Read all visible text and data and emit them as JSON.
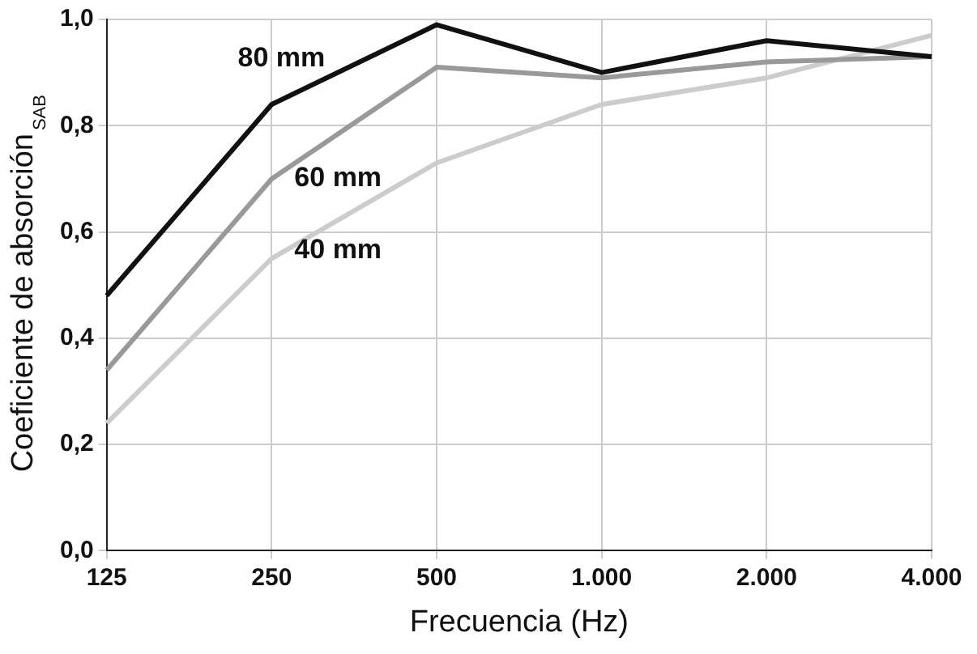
{
  "chart_data": {
    "type": "line",
    "xlabel": "Frecuencia (Hz)",
    "ylabel": "Coeficiente de absorción$_{SAB}$",
    "categories": [
      "125",
      "250",
      "500",
      "1.000",
      "2.000",
      "4.000"
    ],
    "ylim": [
      0,
      1
    ],
    "yticks": [
      {
        "value": 0,
        "label": "0,0"
      },
      {
        "value": 0.2,
        "label": "0,2"
      },
      {
        "value": 0.4,
        "label": "0,4"
      },
      {
        "value": 0.6,
        "label": "0,6"
      },
      {
        "value": 0.8,
        "label": "0,8"
      },
      {
        "value": 1,
        "label": "1,0"
      }
    ],
    "grid": true,
    "legend": false,
    "marker": "none",
    "line_style": "solid",
    "series": [
      {
        "name": "80 mm",
        "color": "#111111",
        "values": [
          0.48,
          0.84,
          0.99,
          0.9,
          0.96,
          0.93
        ]
      },
      {
        "name": "60 mm",
        "color": "#999999",
        "values": [
          0.34,
          0.7,
          0.91,
          0.89,
          0.92,
          0.93
        ]
      },
      {
        "name": "40 mm",
        "color": "#cccccc",
        "values": [
          0.24,
          0.55,
          0.73,
          0.84,
          0.89,
          0.97
        ]
      }
    ]
  }
}
